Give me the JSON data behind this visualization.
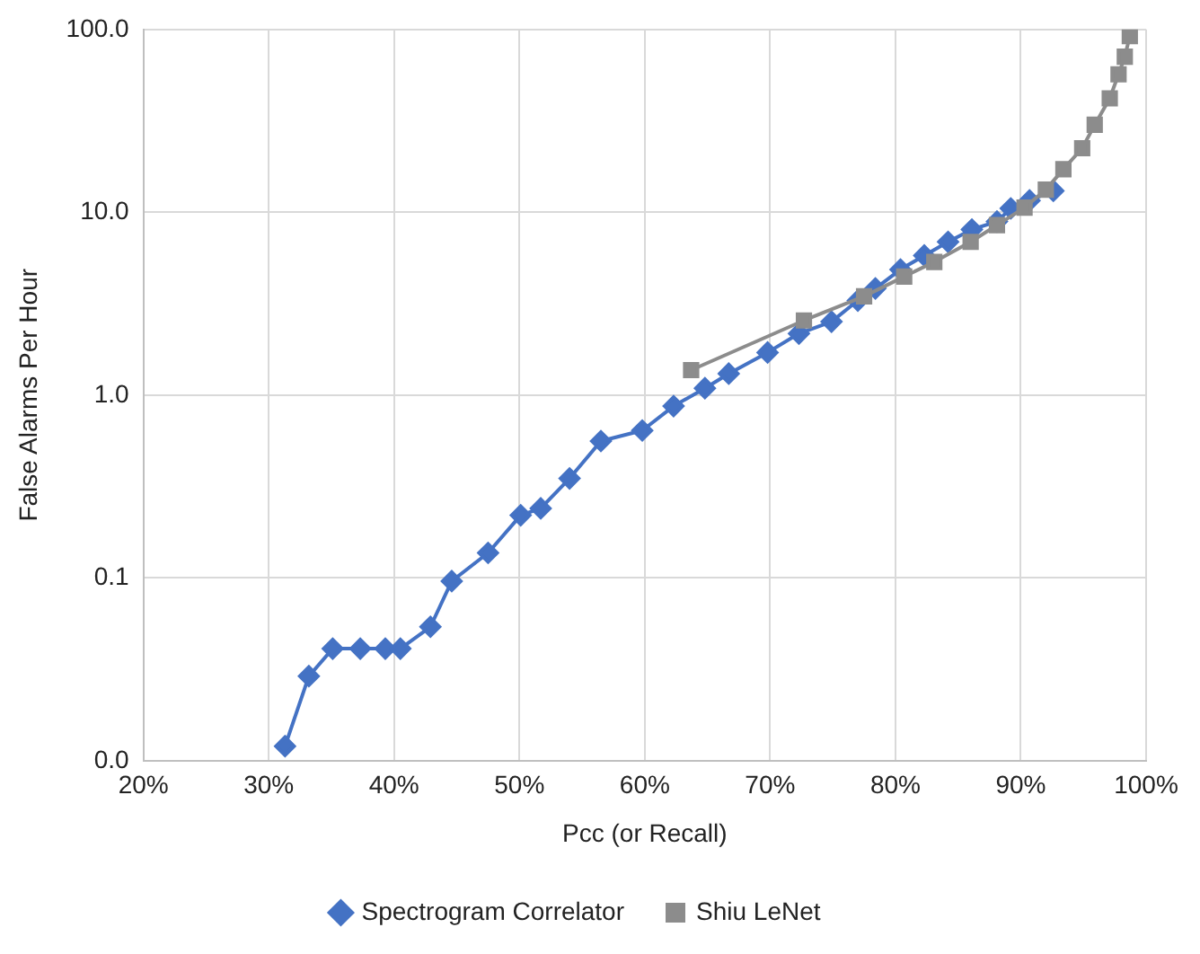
{
  "chart_data": {
    "type": "line",
    "xlabel": "Pcc (or Recall)",
    "ylabel": "False Alarms Per Hour",
    "log": "y",
    "grid": true,
    "legend": "bottom",
    "xlim": [
      20,
      100
    ],
    "xticks": [
      {
        "value": 20,
        "label": "20%"
      },
      {
        "value": 30,
        "label": "30%"
      },
      {
        "value": 40,
        "label": "40%"
      },
      {
        "value": 50,
        "label": "50%"
      },
      {
        "value": 60,
        "label": "60%"
      },
      {
        "value": 70,
        "label": "70%"
      },
      {
        "value": 80,
        "label": "80%"
      },
      {
        "value": 90,
        "label": "90%"
      },
      {
        "value": 100,
        "label": "100%"
      }
    ],
    "ylim": [
      0.01,
      100
    ],
    "yticks": [
      {
        "value": 0.01,
        "label": "0.0"
      },
      {
        "value": 0.1,
        "label": "0.1"
      },
      {
        "value": 1,
        "label": "1.0"
      },
      {
        "value": 10,
        "label": "10.0"
      },
      {
        "value": 100,
        "label": "100.0"
      }
    ],
    "series": [
      {
        "name": "Spectrogram Correlator",
        "color": "#4472c4",
        "marker": "diamond",
        "x": [
          31.3,
          33.2,
          35.1,
          37.3,
          39.3,
          40.5,
          42.9,
          44.6,
          47.5,
          50.1,
          51.7,
          54.0,
          56.5,
          59.8,
          62.3,
          64.8,
          66.7,
          69.8,
          72.3,
          74.9,
          77.0,
          78.4,
          80.4,
          82.3,
          84.2,
          86.1,
          88.1,
          89.2,
          90.7,
          92.6
        ],
        "values": [
          0.012,
          0.029,
          0.041,
          0.041,
          0.041,
          0.041,
          0.054,
          0.096,
          0.137,
          0.22,
          0.24,
          0.35,
          0.56,
          0.64,
          0.87,
          1.09,
          1.31,
          1.71,
          2.17,
          2.52,
          3.29,
          3.83,
          4.86,
          5.8,
          6.89,
          8.05,
          8.9,
          10.5,
          11.6,
          13.1
        ]
      },
      {
        "name": "Shiu LeNet",
        "color": "#8c8c8c",
        "marker": "square",
        "x": [
          63.7,
          72.7,
          77.5,
          80.7,
          83.1,
          86.0,
          88.1,
          90.3,
          92.0,
          93.4,
          94.9,
          95.9,
          97.1,
          97.8,
          98.3,
          98.7
        ],
        "values": [
          1.37,
          2.56,
          3.47,
          4.45,
          5.35,
          6.89,
          8.5,
          10.6,
          13.3,
          17.2,
          22.4,
          30.1,
          42,
          56.8,
          71,
          92
        ]
      }
    ]
  }
}
